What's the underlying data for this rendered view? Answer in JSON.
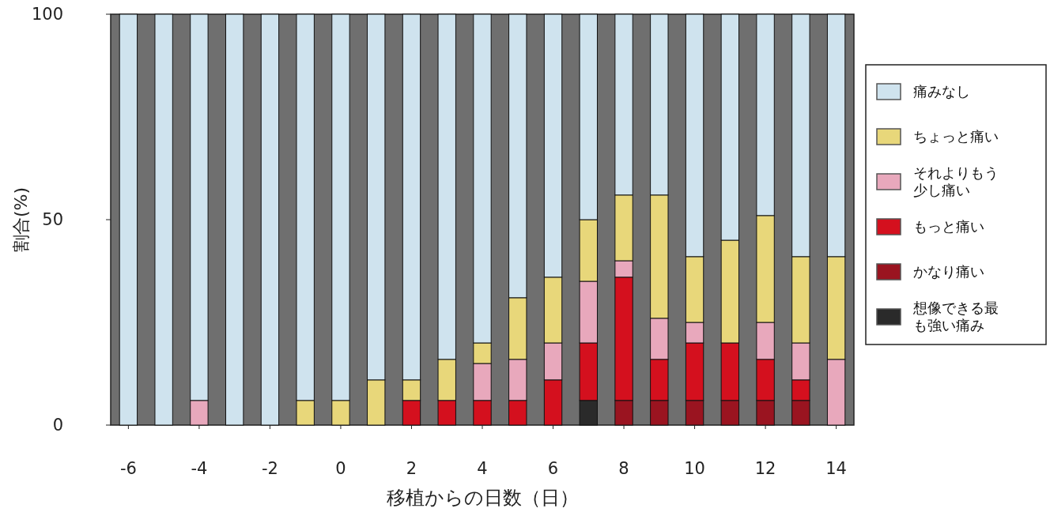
{
  "chart_data": {
    "type": "bar",
    "stacked": true,
    "xlabel": "移植からの日数（日）",
    "ylabel": "割合(%)",
    "x": [
      -6,
      -5,
      -4,
      -3,
      -2,
      -1,
      0,
      1,
      2,
      3,
      4,
      5,
      6,
      7,
      8,
      9,
      10,
      11,
      12,
      13,
      14
    ],
    "xlim": [
      -6.5,
      14.5
    ],
    "xticks": [
      -6,
      -4,
      -2,
      0,
      2,
      4,
      6,
      8,
      10,
      12,
      14
    ],
    "ylim": [
      0,
      100
    ],
    "yticks": [
      0,
      50,
      100
    ],
    "legend": "right",
    "series": [
      {
        "name": "想像できる最も強い痛み",
        "color": "#2a2a2a",
        "values": [
          0,
          0,
          0,
          0,
          0,
          0,
          0,
          0,
          0,
          0,
          0,
          0,
          0,
          6,
          0,
          0,
          0,
          0,
          0,
          0,
          0
        ]
      },
      {
        "name": "かなり痛い",
        "color": "#9a1420",
        "values": [
          0,
          0,
          0,
          0,
          0,
          0,
          0,
          0,
          0,
          0,
          0,
          0,
          0,
          0,
          6,
          6,
          6,
          6,
          6,
          6,
          0
        ]
      },
      {
        "name": "もっと痛い",
        "color": "#d4101e",
        "values": [
          0,
          0,
          0,
          0,
          0,
          0,
          0,
          0,
          6,
          6,
          6,
          6,
          11,
          14,
          30,
          10,
          14,
          14,
          10,
          5,
          0
        ]
      },
      {
        "name": "それよりもう少し痛い",
        "color": "#e8a8bc",
        "values": [
          0,
          0,
          6,
          0,
          0,
          0,
          0,
          0,
          0,
          0,
          9,
          10,
          9,
          15,
          4,
          10,
          5,
          0,
          9,
          9,
          16
        ]
      },
      {
        "name": "ちょっと痛い",
        "color": "#e8d77a",
        "values": [
          0,
          0,
          0,
          0,
          0,
          6,
          6,
          11,
          5,
          10,
          5,
          15,
          16,
          15,
          16,
          30,
          16,
          25,
          26,
          21,
          25
        ]
      },
      {
        "name": "痛みなし",
        "color": "#cfe3ee",
        "values": [
          100,
          100,
          94,
          100,
          100,
          94,
          94,
          89,
          89,
          84,
          80,
          69,
          64,
          50,
          44,
          44,
          59,
          55,
          49,
          59,
          59
        ]
      }
    ]
  }
}
